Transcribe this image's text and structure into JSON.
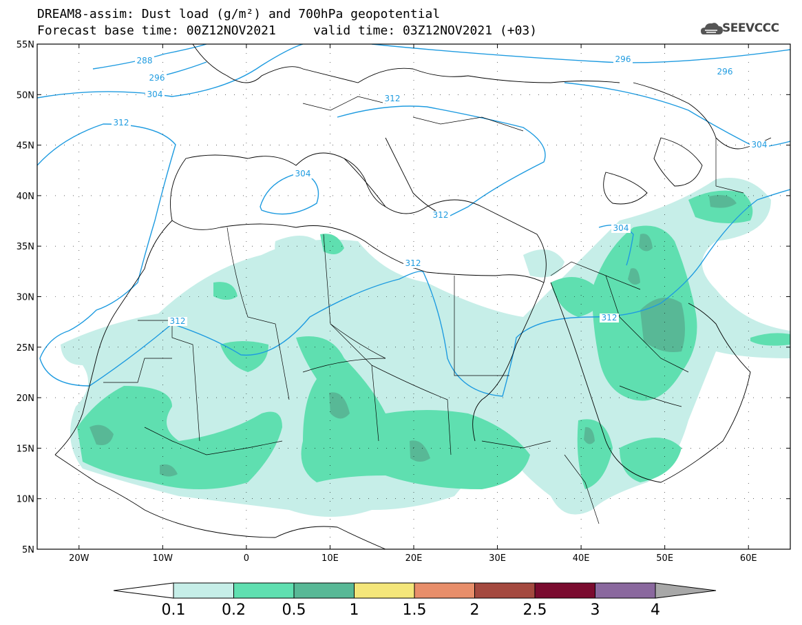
{
  "title": {
    "line1": "DREAM8-assim: Dust load (g/m²) and 700hPa geopotential",
    "line2": "Forecast base time: 00Z12NOV2021     valid time: 03Z12NOV2021 (+03)"
  },
  "logo": {
    "text": "SEEVCCC",
    "icon": "cloud-logo-icon",
    "color": "#555555"
  },
  "map": {
    "lon_range": [
      -25,
      65
    ],
    "lat_range": [
      5,
      55
    ],
    "lat_ticks": [
      "55N",
      "50N",
      "45N",
      "40N",
      "35N",
      "30N",
      "25N",
      "20N",
      "15N",
      "10N",
      "5N"
    ],
    "lon_ticks": [
      "20W",
      "10W",
      "0",
      "10E",
      "20E",
      "30E",
      "40E",
      "50E",
      "60E"
    ],
    "contour_color": "#1e9be0",
    "contour_labels": [
      "288",
      "296",
      "304",
      "296",
      "296",
      "312",
      "312",
      "304",
      "312",
      "304",
      "312",
      "304",
      "312",
      "312"
    ]
  },
  "colorbar": {
    "levels": [
      "0.1",
      "0.2",
      "0.5",
      "1",
      "1.5",
      "2",
      "2.5",
      "3",
      "4"
    ],
    "colors": [
      "#c6eee8",
      "#5fdfb0",
      "#58b896",
      "#f4e67a",
      "#e88e6a",
      "#a4493f",
      "#7a0b2f",
      "#8a689e"
    ],
    "under_color": "#ffffff",
    "over_color": "#a8a8a8"
  }
}
